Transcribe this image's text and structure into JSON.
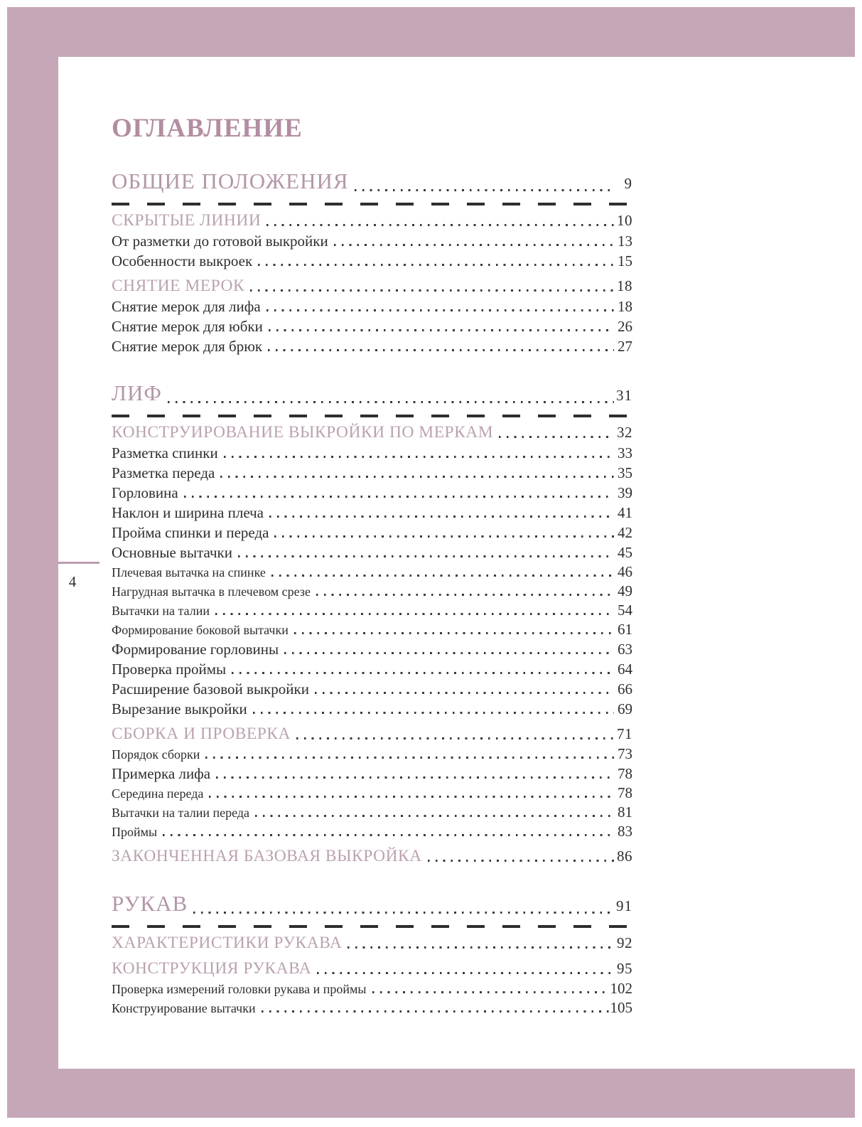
{
  "title": "ОГЛАВЛЕНИЕ",
  "folio": "4",
  "colors": {
    "frame_band": "#c6a7b7",
    "heading_accent": "#b497a9",
    "subheading_accent": "#baa2b1",
    "body_text": "#2d2d2d"
  },
  "toc": [
    {
      "type": "chapter",
      "label": "ОБЩИЕ ПОЛОЖЕНИЯ",
      "page": "9",
      "rule": true
    },
    {
      "type": "section",
      "label": "СКРЫТЫЕ ЛИНИИ",
      "page": "10"
    },
    {
      "type": "item",
      "label": "От разметки до готовой выкройки",
      "page": "13"
    },
    {
      "type": "item",
      "label": "Особенности выкроек",
      "page": "15"
    },
    {
      "type": "section",
      "label": "СНЯТИЕ МЕРОК",
      "page": "18"
    },
    {
      "type": "item",
      "label": "Снятие мерок для лифа",
      "page": "18"
    },
    {
      "type": "item",
      "label": "Снятие мерок для юбки",
      "page": "26"
    },
    {
      "type": "item",
      "label": "Снятие мерок для брюк",
      "page": "27"
    },
    {
      "type": "chapter",
      "label": "ЛИФ",
      "page": "31",
      "rule": true
    },
    {
      "type": "section",
      "label": "КОНСТРУИРОВАНИЕ ВЫКРОЙКИ ПО МЕРКАМ",
      "page": "32"
    },
    {
      "type": "item",
      "label": "Разметка спинки",
      "page": "33"
    },
    {
      "type": "item",
      "label": "Разметка переда",
      "page": "35"
    },
    {
      "type": "item",
      "label": "Горловина",
      "page": "39"
    },
    {
      "type": "item",
      "label": "Наклон и ширина плеча",
      "page": "41"
    },
    {
      "type": "item",
      "label": "Пройма спинки и переда",
      "page": "42"
    },
    {
      "type": "item",
      "label": "Основные вытачки",
      "page": "45"
    },
    {
      "type": "subitem",
      "label": "Плечевая вытачка на спинке",
      "page": "46"
    },
    {
      "type": "subitem",
      "label": "Нагрудная вытачка в плечевом срезе",
      "page": "49"
    },
    {
      "type": "subitem",
      "label": "Вытачки на талии",
      "page": "54"
    },
    {
      "type": "subitem",
      "label": "Формирование боковой вытачки",
      "page": "61"
    },
    {
      "type": "item",
      "label": "Формирование горловины",
      "page": "63"
    },
    {
      "type": "item",
      "label": "Проверка проймы",
      "page": "64"
    },
    {
      "type": "item",
      "label": "Расширение базовой выкройки",
      "page": "66"
    },
    {
      "type": "item",
      "label": "Вырезание выкройки",
      "page": "69"
    },
    {
      "type": "section",
      "label": "СБОРКА И ПРОВЕРКА",
      "page": "71"
    },
    {
      "type": "subitem",
      "label": "Порядок сборки",
      "page": "73"
    },
    {
      "type": "item",
      "label": "Примерка лифа",
      "page": "78"
    },
    {
      "type": "subitem",
      "label": "Середина переда",
      "page": "78"
    },
    {
      "type": "subitem",
      "label": "Вытачки на талии переда",
      "page": "81"
    },
    {
      "type": "subitem",
      "label": "Проймы",
      "page": "83"
    },
    {
      "type": "section",
      "label": "ЗАКОНЧЕННАЯ БАЗОВАЯ ВЫКРОЙКА",
      "page": "86"
    },
    {
      "type": "chapter",
      "label": "РУКАВ",
      "page": "91",
      "rule": true
    },
    {
      "type": "section",
      "label": "ХАРАКТЕРИСТИКИ РУКАВА",
      "page": "92"
    },
    {
      "type": "section",
      "label": "КОНСТРУКЦИЯ РУКАВА",
      "page": "95"
    },
    {
      "type": "subitem",
      "label": "Проверка измерений головки рукава и проймы",
      "page": "102"
    },
    {
      "type": "subitem",
      "label": "Конструирование вытачки",
      "page": "105"
    }
  ]
}
